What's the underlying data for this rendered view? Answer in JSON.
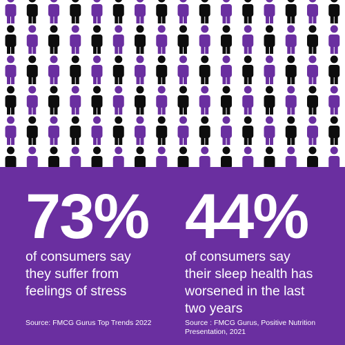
{
  "colors": {
    "purple": "#6a2fa0",
    "black": "#0d0d0d",
    "background": "#ffffff",
    "text": "#ffffff"
  },
  "icon": "person-icon",
  "stats": [
    {
      "value": "73%",
      "lines": [
        "of consumers say",
        "they suffer from",
        "feelings of stress"
      ],
      "source_lines": [
        "Source: FMCG Gurus Top Trends 2022"
      ]
    },
    {
      "value": "44%",
      "lines": [
        "of consumers say",
        "their sleep health has",
        "worsened in the last",
        "two years"
      ],
      "source_lines": [
        "Source : FMCG Gurus, Positive Nutrition",
        "Presentation, 2021"
      ]
    }
  ]
}
